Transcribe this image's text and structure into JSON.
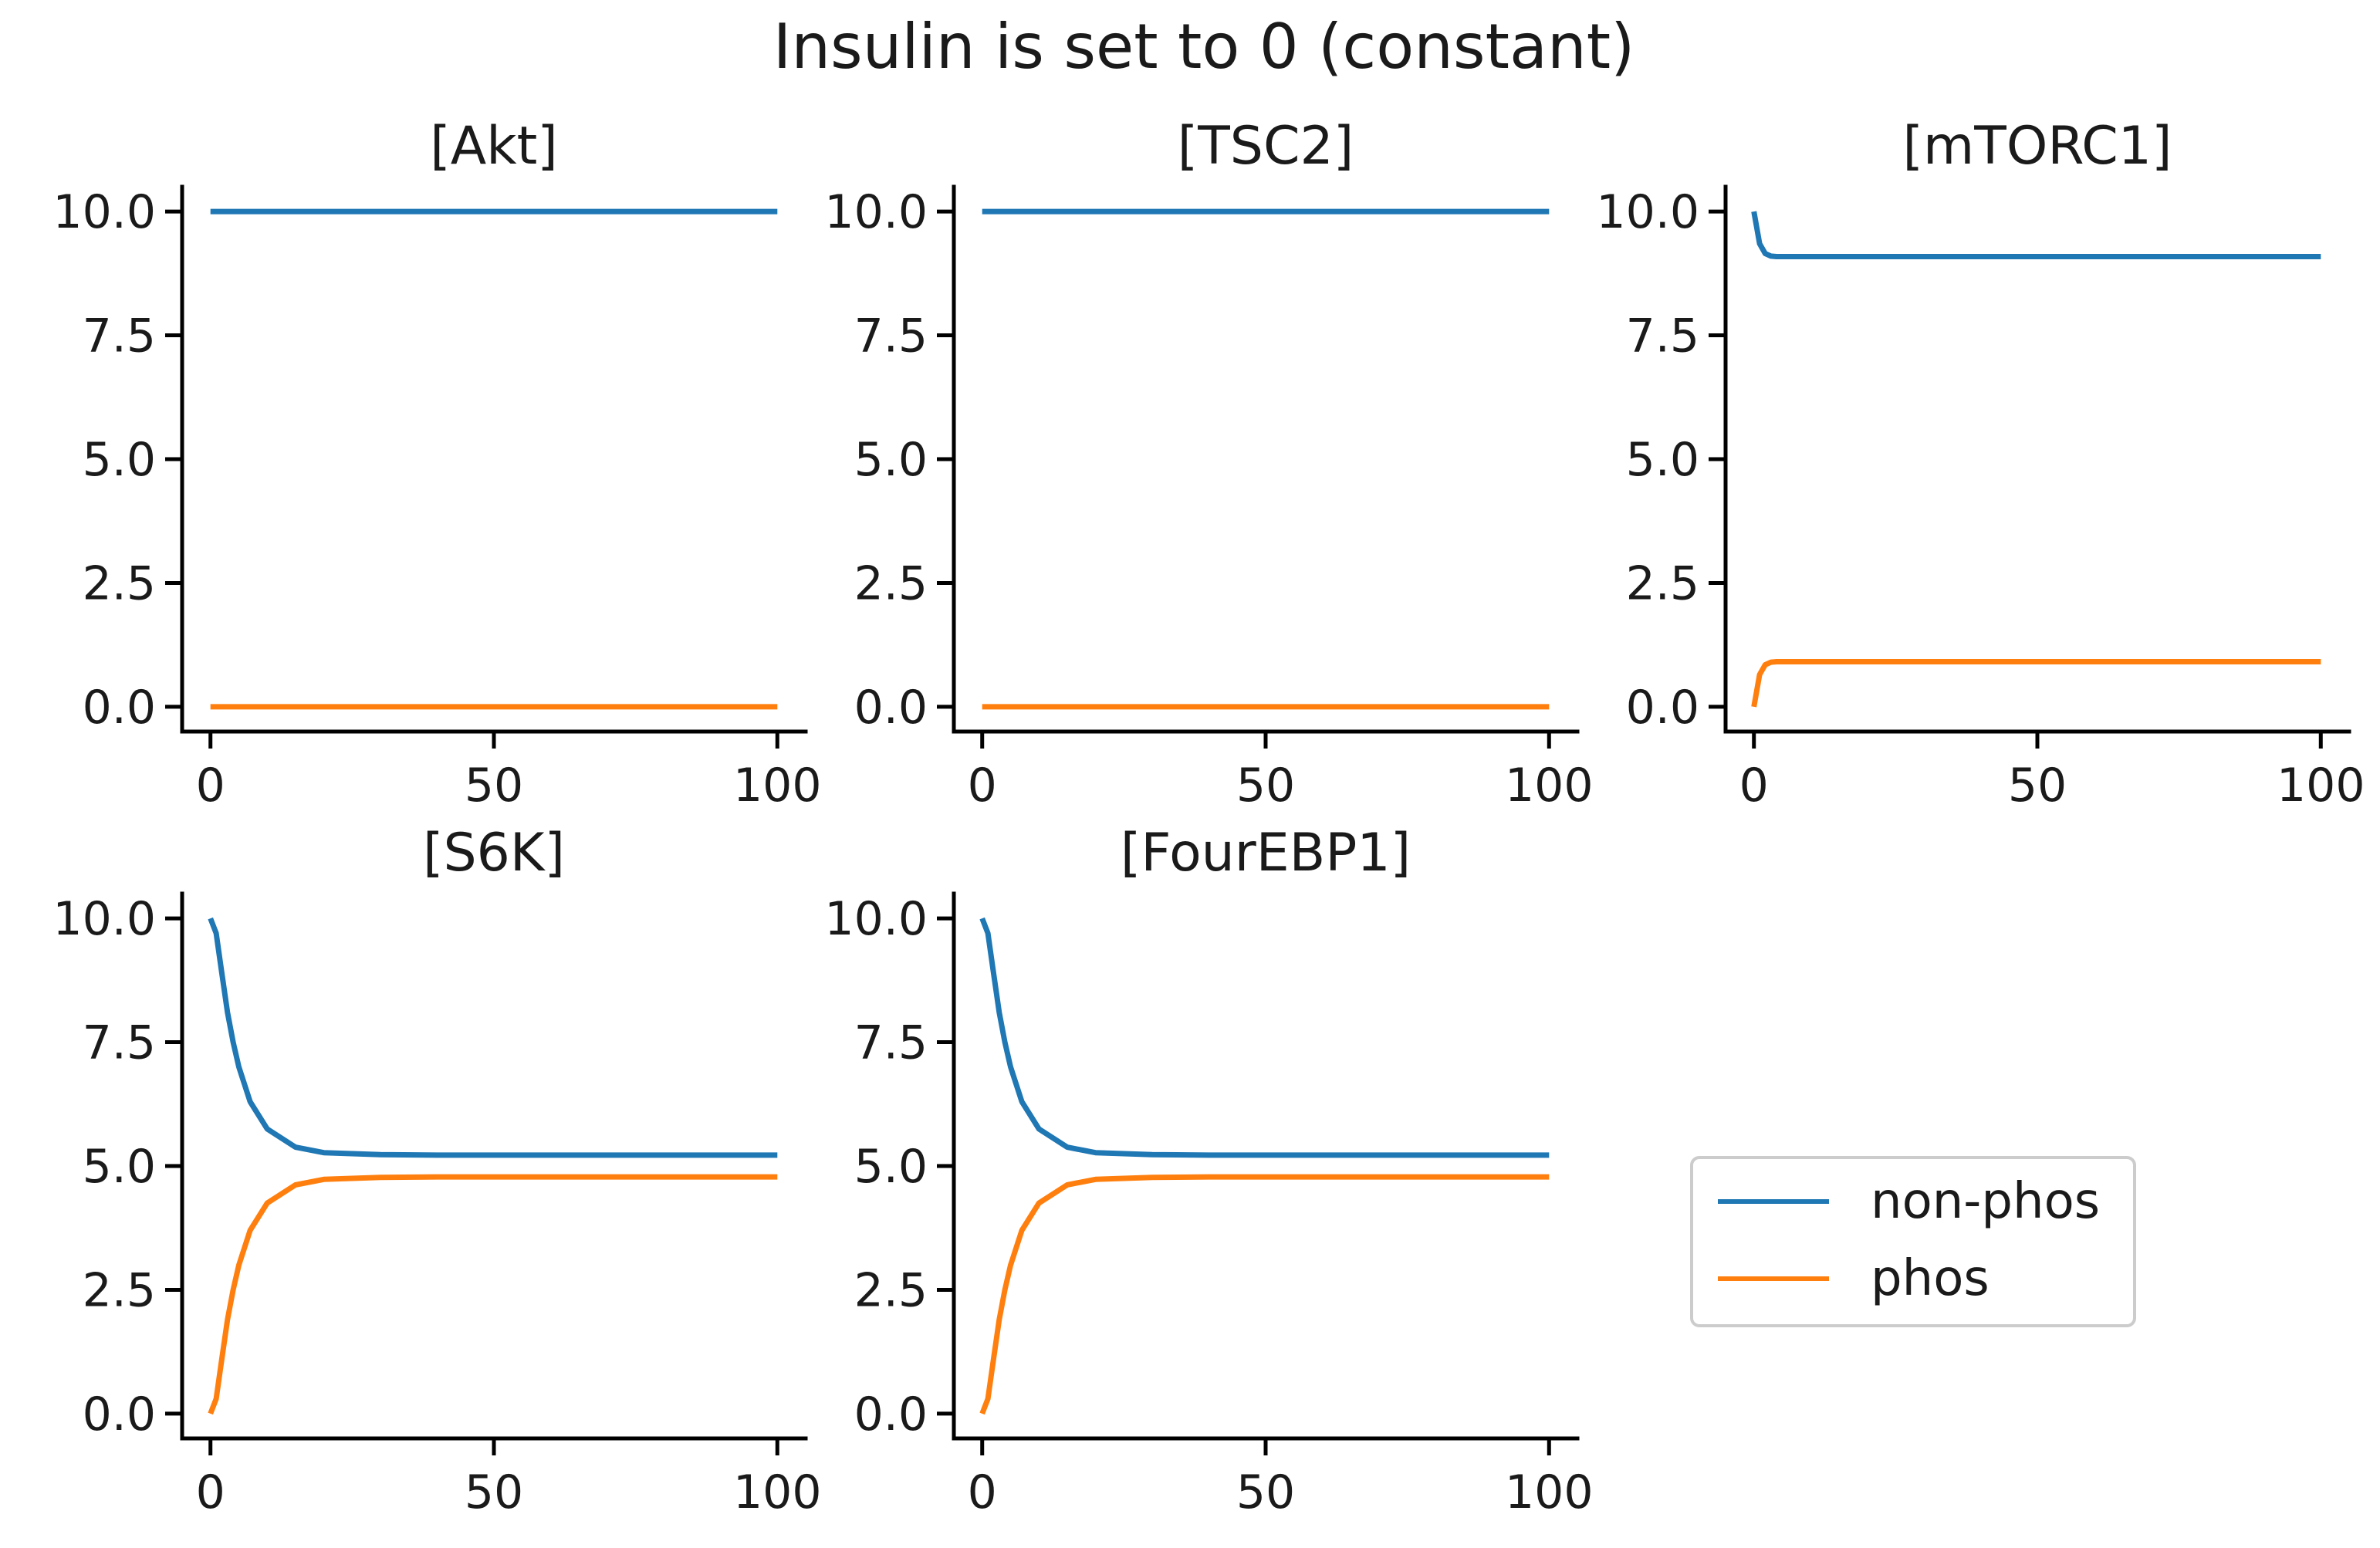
{
  "figure": {
    "title": "Insulin is set to 0 (constant)",
    "colors": {
      "non_phos": "#1f77b4",
      "phos": "#ff7f0e"
    }
  },
  "legend": {
    "placement": "lower-right (empty sixth panel)",
    "entries": [
      {
        "label": "non-phos",
        "color": "#1f77b4"
      },
      {
        "label": "phos",
        "color": "#ff7f0e"
      }
    ]
  },
  "chart_data": [
    {
      "type": "line",
      "title": "[Akt]",
      "xlim": [
        0,
        100
      ],
      "ylim": [
        -0.5,
        10.5
      ],
      "xticks": [
        "0",
        "50",
        "100"
      ],
      "yticks": [
        "0.0",
        "2.5",
        "5.0",
        "7.5",
        "10.0"
      ],
      "x": [
        0,
        1,
        2,
        3,
        4,
        5,
        7,
        10,
        15,
        20,
        30,
        40,
        60,
        80,
        100
      ],
      "series": [
        {
          "name": "non-phos",
          "values": [
            10,
            10,
            10,
            10,
            10,
            10,
            10,
            10,
            10,
            10,
            10,
            10,
            10,
            10,
            10
          ]
        },
        {
          "name": "phos",
          "values": [
            0,
            0,
            0,
            0,
            0,
            0,
            0,
            0,
            0,
            0,
            0,
            0,
            0,
            0,
            0
          ]
        }
      ]
    },
    {
      "type": "line",
      "title": "[TSC2]",
      "xlim": [
        0,
        100
      ],
      "ylim": [
        -0.5,
        10.5
      ],
      "xticks": [
        "0",
        "50",
        "100"
      ],
      "yticks": [
        "0.0",
        "2.5",
        "5.0",
        "7.5",
        "10.0"
      ],
      "x": [
        0,
        1,
        2,
        3,
        4,
        5,
        7,
        10,
        15,
        20,
        30,
        40,
        60,
        80,
        100
      ],
      "series": [
        {
          "name": "non-phos",
          "values": [
            10,
            10,
            10,
            10,
            10,
            10,
            10,
            10,
            10,
            10,
            10,
            10,
            10,
            10,
            10
          ]
        },
        {
          "name": "phos",
          "values": [
            0,
            0,
            0,
            0,
            0,
            0,
            0,
            0,
            0,
            0,
            0,
            0,
            0,
            0,
            0
          ]
        }
      ]
    },
    {
      "type": "line",
      "title": "[mTORC1]",
      "xlim": [
        0,
        100
      ],
      "ylim": [
        -0.5,
        10.5
      ],
      "xticks": [
        "0",
        "50",
        "100"
      ],
      "yticks": [
        "0.0",
        "2.5",
        "5.0",
        "7.5",
        "10.0"
      ],
      "x": [
        0,
        1,
        2,
        3,
        4,
        5,
        7,
        10,
        15,
        20,
        30,
        40,
        60,
        80,
        100
      ],
      "series": [
        {
          "name": "non-phos",
          "values": [
            10.0,
            9.35,
            9.15,
            9.1,
            9.09,
            9.09,
            9.09,
            9.09,
            9.09,
            9.09,
            9.09,
            9.09,
            9.09,
            9.09,
            9.09
          ]
        },
        {
          "name": "phos",
          "values": [
            0.0,
            0.65,
            0.85,
            0.9,
            0.91,
            0.91,
            0.91,
            0.91,
            0.91,
            0.91,
            0.91,
            0.91,
            0.91,
            0.91,
            0.91
          ]
        }
      ]
    },
    {
      "type": "line",
      "title": "[S6K]",
      "xlim": [
        0,
        100
      ],
      "ylim": [
        -0.5,
        10.5
      ],
      "xticks": [
        "0",
        "50",
        "100"
      ],
      "yticks": [
        "0.0",
        "2.5",
        "5.0",
        "7.5",
        "10.0"
      ],
      "x": [
        0,
        1,
        2,
        3,
        4,
        5,
        7,
        10,
        15,
        20,
        30,
        40,
        60,
        80,
        100
      ],
      "series": [
        {
          "name": "non-phos",
          "values": [
            10.0,
            9.7,
            8.9,
            8.1,
            7.5,
            7.0,
            6.3,
            5.75,
            5.38,
            5.27,
            5.23,
            5.22,
            5.22,
            5.22,
            5.22
          ]
        },
        {
          "name": "phos",
          "values": [
            0.0,
            0.3,
            1.1,
            1.9,
            2.5,
            3.0,
            3.7,
            4.25,
            4.62,
            4.73,
            4.77,
            4.78,
            4.78,
            4.78,
            4.78
          ]
        }
      ]
    },
    {
      "type": "line",
      "title": "[FourEBP1]",
      "xlim": [
        0,
        100
      ],
      "ylim": [
        -0.5,
        10.5
      ],
      "xticks": [
        "0",
        "50",
        "100"
      ],
      "yticks": [
        "0.0",
        "2.5",
        "5.0",
        "7.5",
        "10.0"
      ],
      "x": [
        0,
        1,
        2,
        3,
        4,
        5,
        7,
        10,
        15,
        20,
        30,
        40,
        60,
        80,
        100
      ],
      "series": [
        {
          "name": "non-phos",
          "values": [
            10.0,
            9.7,
            8.9,
            8.1,
            7.5,
            7.0,
            6.3,
            5.75,
            5.38,
            5.27,
            5.23,
            5.22,
            5.22,
            5.22,
            5.22
          ]
        },
        {
          "name": "phos",
          "values": [
            0.0,
            0.3,
            1.1,
            1.9,
            2.5,
            3.0,
            3.7,
            4.25,
            4.62,
            4.73,
            4.77,
            4.78,
            4.78,
            4.78,
            4.78
          ]
        }
      ]
    }
  ]
}
